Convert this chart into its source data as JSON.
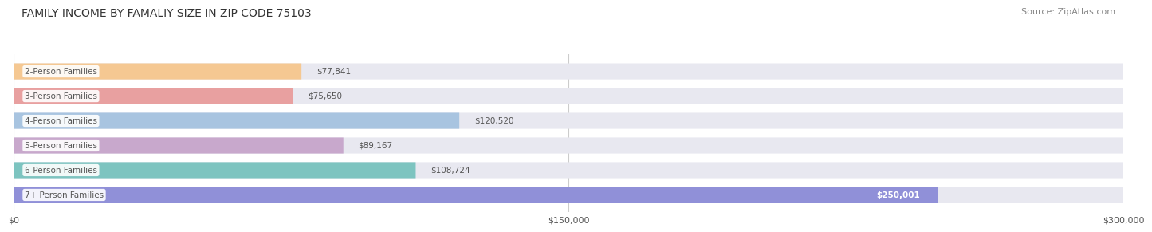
{
  "title": "FAMILY INCOME BY FAMALIY SIZE IN ZIP CODE 75103",
  "source": "Source: ZipAtlas.com",
  "categories": [
    "2-Person Families",
    "3-Person Families",
    "4-Person Families",
    "5-Person Families",
    "6-Person Families",
    "7+ Person Families"
  ],
  "values": [
    77841,
    75650,
    120520,
    89167,
    108724,
    250001
  ],
  "bar_colors": [
    "#f5c892",
    "#e8a0a0",
    "#a8c4e0",
    "#c8a8cc",
    "#7dc4c0",
    "#9090d8"
  ],
  "bar_bg_color": "#e8e8f0",
  "value_labels": [
    "$77,841",
    "$75,650",
    "$120,520",
    "$89,167",
    "$108,724",
    "$250,001"
  ],
  "xlim": [
    0,
    300000
  ],
  "xtick_values": [
    0,
    150000,
    300000
  ],
  "xtick_labels": [
    "$0",
    "$150,000",
    "$300,000"
  ],
  "background_color": "#ffffff",
  "title_fontsize": 10,
  "source_fontsize": 8,
  "label_fontsize": 7.5,
  "value_fontsize": 7.5,
  "tick_fontsize": 8,
  "bar_height": 0.65,
  "label_color": "#555555",
  "grid_color": "#cccccc"
}
